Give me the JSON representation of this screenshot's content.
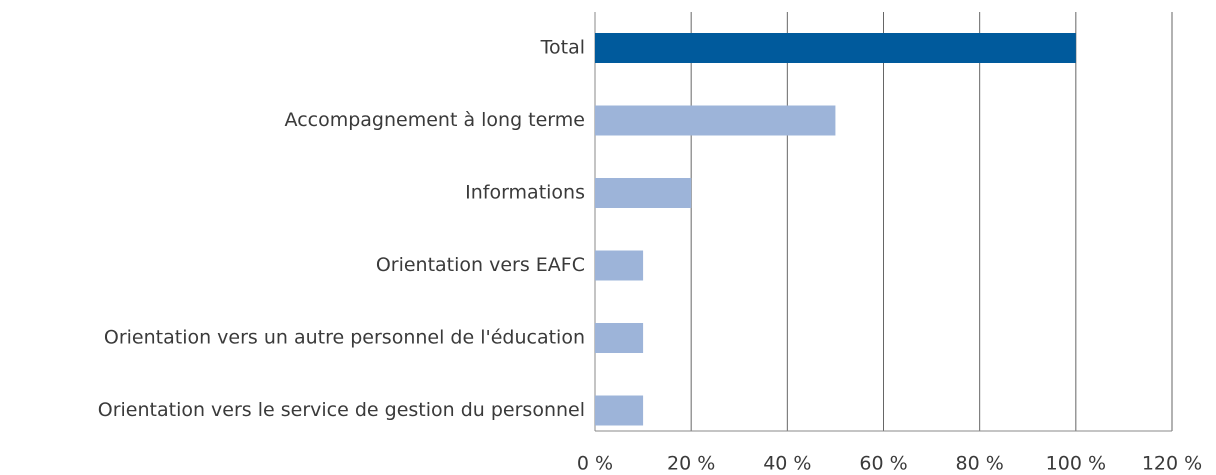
{
  "chart_data": {
    "type": "hbar",
    "categories": [
      "Total",
      "Accompagnement à long terme",
      "Informations",
      "Orientation vers EAFC",
      "Orientation vers un autre personnel de l'éducation",
      "Orientation vers le service de gestion du personnel"
    ],
    "values": [
      100,
      50,
      20,
      10,
      10,
      10
    ],
    "colors": [
      "#005a9c",
      "#9db4d9",
      "#9db4d9",
      "#9db4d9",
      "#9db4d9",
      "#9db4d9"
    ],
    "xlim": [
      0,
      120
    ],
    "xticks": [
      {
        "value": 0,
        "label": "0 %"
      },
      {
        "value": 20,
        "label": "20 %"
      },
      {
        "value": 40,
        "label": "40 %"
      },
      {
        "value": 60,
        "label": "60 %"
      },
      {
        "value": 80,
        "label": "80 %"
      },
      {
        "value": 100,
        "label": "100 %"
      },
      {
        "value": 120,
        "label": "120 %"
      }
    ],
    "grid": true
  }
}
